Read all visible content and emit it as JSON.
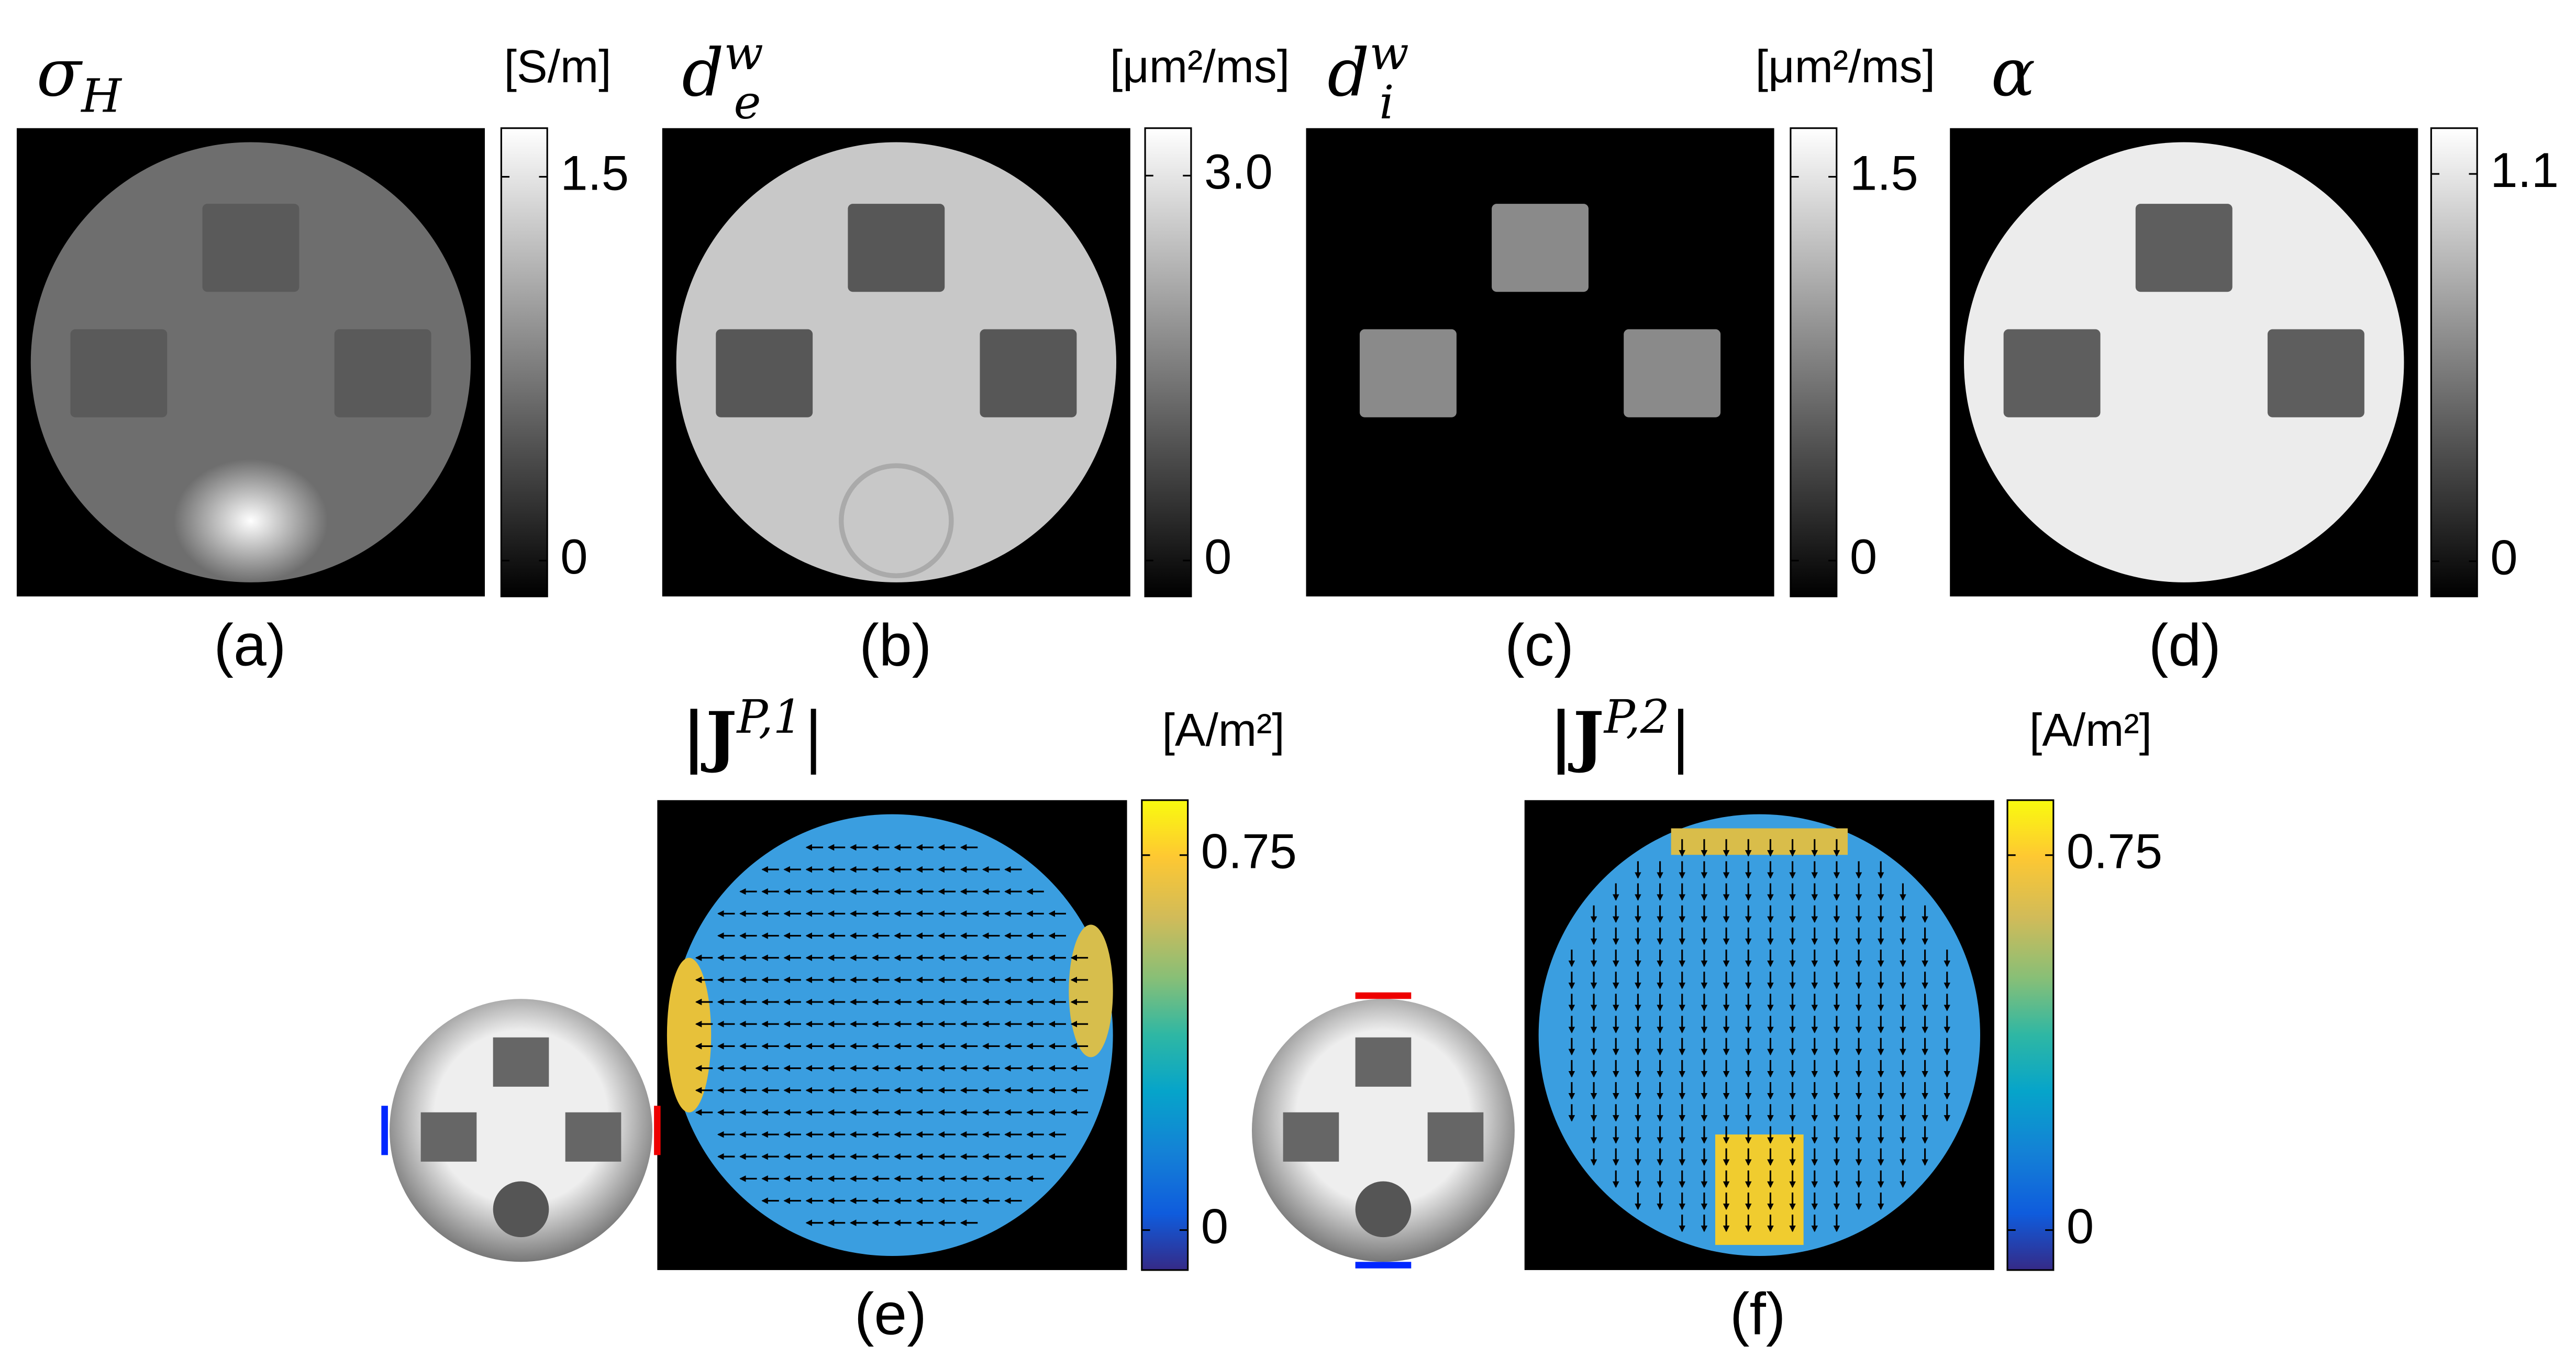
{
  "panels": [
    {
      "label": "(a)",
      "title": {
        "main": "σ",
        "sub": "H"
      },
      "unit": "[S/m]",
      "colormap": "gray",
      "clim": [
        -0.14,
        1.69
      ],
      "ticks": [
        0,
        1.5
      ]
    },
    {
      "label": "(b)",
      "title": {
        "main": "d",
        "sub": "e",
        "sup": "w"
      },
      "unit": "[μm²/ms]",
      "colormap": "gray",
      "clim": [
        -0.28,
        3.37
      ],
      "ticks": [
        0,
        {
          "value": 3,
          "label": "3.0"
        }
      ]
    },
    {
      "label": "(c)",
      "title": {
        "main": "d",
        "sub": "i",
        "sup": "w"
      },
      "unit": "[μm²/ms]",
      "colormap": "gray",
      "clim": [
        -0.14,
        1.69
      ],
      "ticks": [
        0,
        1.5
      ]
    },
    {
      "label": "(d)",
      "title": {
        "main": "α"
      },
      "unit": "",
      "colormap": "gray",
      "clim": [
        -0.1,
        1.23
      ],
      "ticks": [
        0,
        1.1
      ]
    },
    {
      "label": "(e)",
      "title": {
        "main": "|J",
        "sup": "P,1",
        "end": "|"
      },
      "unit": "[A/m²]",
      "colormap": "parula",
      "clim": [
        -0.08,
        0.86
      ],
      "ticks": [
        0,
        0.75
      ]
    },
    {
      "label": "(f)",
      "title": {
        "main": "|J",
        "sup": "P,2",
        "end": "|"
      },
      "unit": "[A/m²]",
      "colormap": "parula",
      "clim": [
        -0.08,
        0.86
      ],
      "ticks": [
        0,
        0.75
      ]
    }
  ]
}
